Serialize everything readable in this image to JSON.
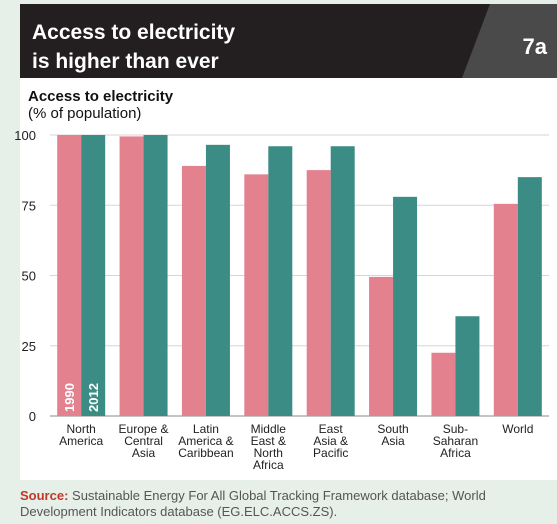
{
  "header": {
    "title_line1": "Access to electricity",
    "title_line2": "is higher than ever",
    "badge": "7a"
  },
  "colors": {
    "s1990": "#e4818f",
    "s2012": "#3a8c84",
    "header_bg": "#231f20",
    "page_bg": "#e7efe9"
  },
  "chart_data": {
    "type": "bar",
    "title": "Access to electricity",
    "ylabel": "(% of population)",
    "ylim": [
      0,
      100
    ],
    "yticks": [
      "0",
      "25",
      "50",
      "75",
      "100"
    ],
    "grid": true,
    "categories": [
      [
        "North",
        "America"
      ],
      [
        "Europe &",
        "Central",
        "Asia"
      ],
      [
        "Latin",
        "America &",
        "Caribbean"
      ],
      [
        "Middle",
        "East &",
        "North",
        "Africa"
      ],
      [
        "East",
        "Asia &",
        "Pacific"
      ],
      [
        "South",
        "Asia"
      ],
      [
        "Sub-",
        "Saharan",
        "Africa"
      ],
      [
        "World"
      ]
    ],
    "series": [
      {
        "name": "1990",
        "values": [
          100,
          99.5,
          89,
          86,
          87.5,
          49.5,
          22.5,
          75.5
        ]
      },
      {
        "name": "2012",
        "values": [
          100,
          100,
          96.5,
          96,
          96,
          78,
          35.5,
          85
        ]
      }
    ]
  },
  "source": {
    "label": "Source:",
    "text": "Sustainable Energy For All Global Tracking Framework database; World Development Indicators database (EG.ELC.ACCS.ZS)."
  }
}
